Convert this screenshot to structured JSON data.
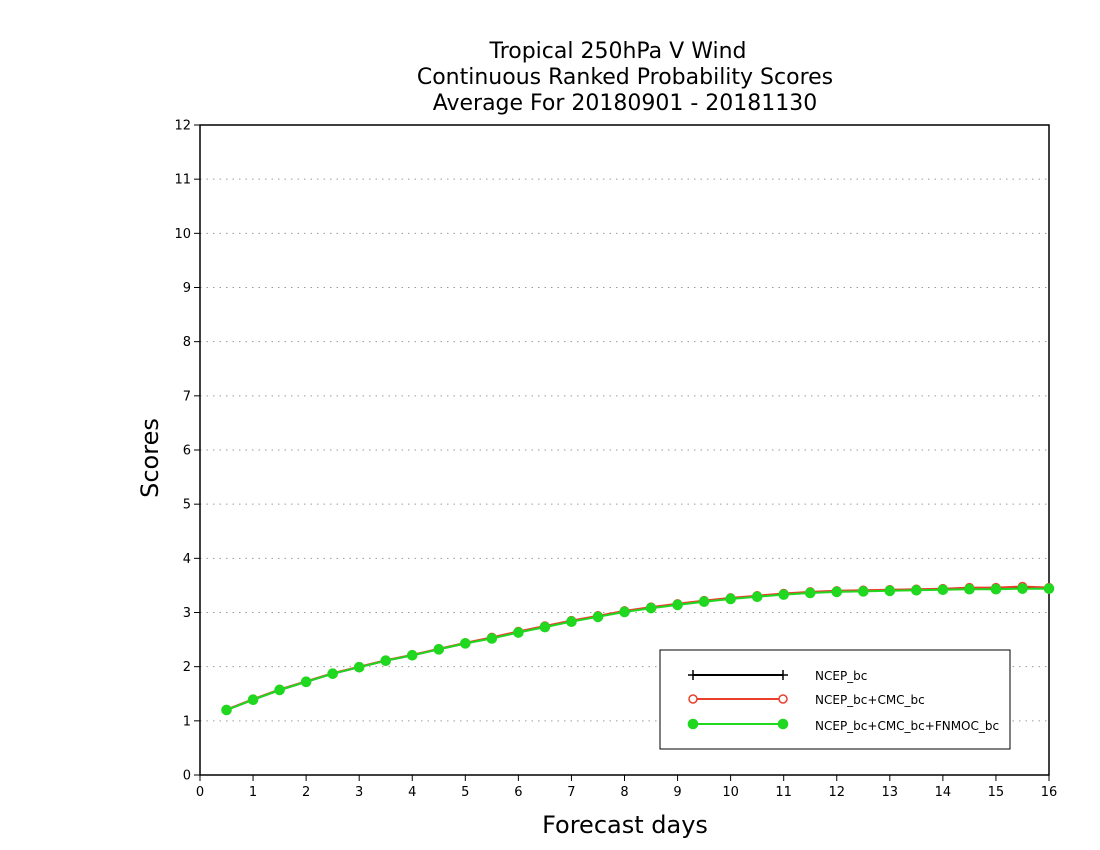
{
  "chart_data": {
    "type": "line",
    "title": [
      "Tropical 250hPa V Wind",
      "Continuous Ranked Probability Scores",
      "Average For 20180901 - 20181130"
    ],
    "xlabel": "Forecast days",
    "ylabel": "Scores",
    "xlim": [
      0,
      16
    ],
    "ylim": [
      0,
      12
    ],
    "xticks": [
      "0",
      "1",
      "2",
      "3",
      "4",
      "5",
      "6",
      "7",
      "8",
      "9",
      "10",
      "11",
      "12",
      "13",
      "14",
      "15",
      "16"
    ],
    "yticks": [
      "0",
      "1",
      "2",
      "3",
      "4",
      "5",
      "6",
      "7",
      "8",
      "9",
      "10",
      "11",
      "12"
    ],
    "grid": true,
    "legend_position": "bottom-right",
    "x": [
      0.5,
      1,
      1.5,
      2,
      2.5,
      3,
      3.5,
      4,
      4.5,
      5,
      5.5,
      6,
      6.5,
      7,
      7.5,
      8,
      8.5,
      9,
      9.5,
      10,
      10.5,
      11,
      11.5,
      12,
      12.5,
      13,
      13.5,
      14,
      14.5,
      15,
      15.5,
      16
    ],
    "series": [
      {
        "name": "NCEP_bc",
        "color": "#000000",
        "marker": "plus",
        "values": [
          1.2,
          1.39,
          1.57,
          1.72,
          1.87,
          1.99,
          2.11,
          2.21,
          2.32,
          2.43,
          2.53,
          2.64,
          2.74,
          2.84,
          2.93,
          3.02,
          3.09,
          3.15,
          3.21,
          3.26,
          3.3,
          3.34,
          3.37,
          3.39,
          3.4,
          3.41,
          3.42,
          3.43,
          3.45,
          3.45,
          3.46,
          3.45
        ]
      },
      {
        "name": "NCEP_bc+CMC_bc",
        "color": "#e8402c",
        "marker": "open-circle",
        "values": [
          1.21,
          1.4,
          1.58,
          1.73,
          1.88,
          2.0,
          2.12,
          2.22,
          2.33,
          2.44,
          2.54,
          2.65,
          2.75,
          2.85,
          2.94,
          3.03,
          3.1,
          3.16,
          3.22,
          3.27,
          3.31,
          3.35,
          3.38,
          3.4,
          3.41,
          3.42,
          3.43,
          3.44,
          3.46,
          3.46,
          3.48,
          3.46
        ]
      },
      {
        "name": "NCEP_bc+CMC_bc+FNMOC_bc",
        "color": "#1fd81f",
        "marker": "filled-circle",
        "values": [
          1.2,
          1.39,
          1.57,
          1.72,
          1.87,
          1.99,
          2.11,
          2.21,
          2.32,
          2.43,
          2.52,
          2.63,
          2.73,
          2.83,
          2.92,
          3.01,
          3.08,
          3.14,
          3.2,
          3.25,
          3.29,
          3.33,
          3.36,
          3.38,
          3.39,
          3.4,
          3.41,
          3.42,
          3.43,
          3.43,
          3.44,
          3.44
        ]
      }
    ]
  }
}
